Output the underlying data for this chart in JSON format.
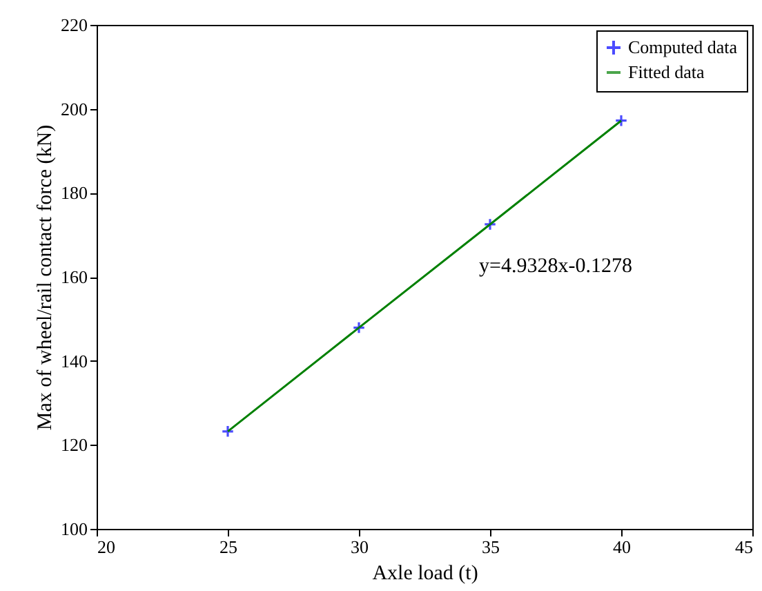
{
  "chart_data": {
    "type": "scatter",
    "xlabel": "Axle load (t)",
    "ylabel": "Max of wheel/rail contact force (kN)",
    "x": [
      25,
      30,
      35,
      40
    ],
    "series": [
      {
        "name": "Computed data",
        "color": "#0000ff",
        "marker": "cross",
        "values": [
          123.2,
          147.9,
          172.5,
          197.2
        ]
      },
      {
        "name": "Fitted data",
        "type": "line",
        "color": "#008000",
        "line_style": "solid",
        "values": [
          123.2,
          147.9,
          172.5,
          197.2
        ]
      }
    ],
    "xlim": [
      20,
      45
    ],
    "xticks": [
      20,
      25,
      30,
      35,
      40,
      45
    ],
    "ylim": [
      100,
      220
    ],
    "yticks": [
      100,
      120,
      140,
      160,
      180,
      200,
      220
    ],
    "grid": false,
    "legend": "top right",
    "annotations": [
      "y=4.9328x-0.1278"
    ]
  }
}
